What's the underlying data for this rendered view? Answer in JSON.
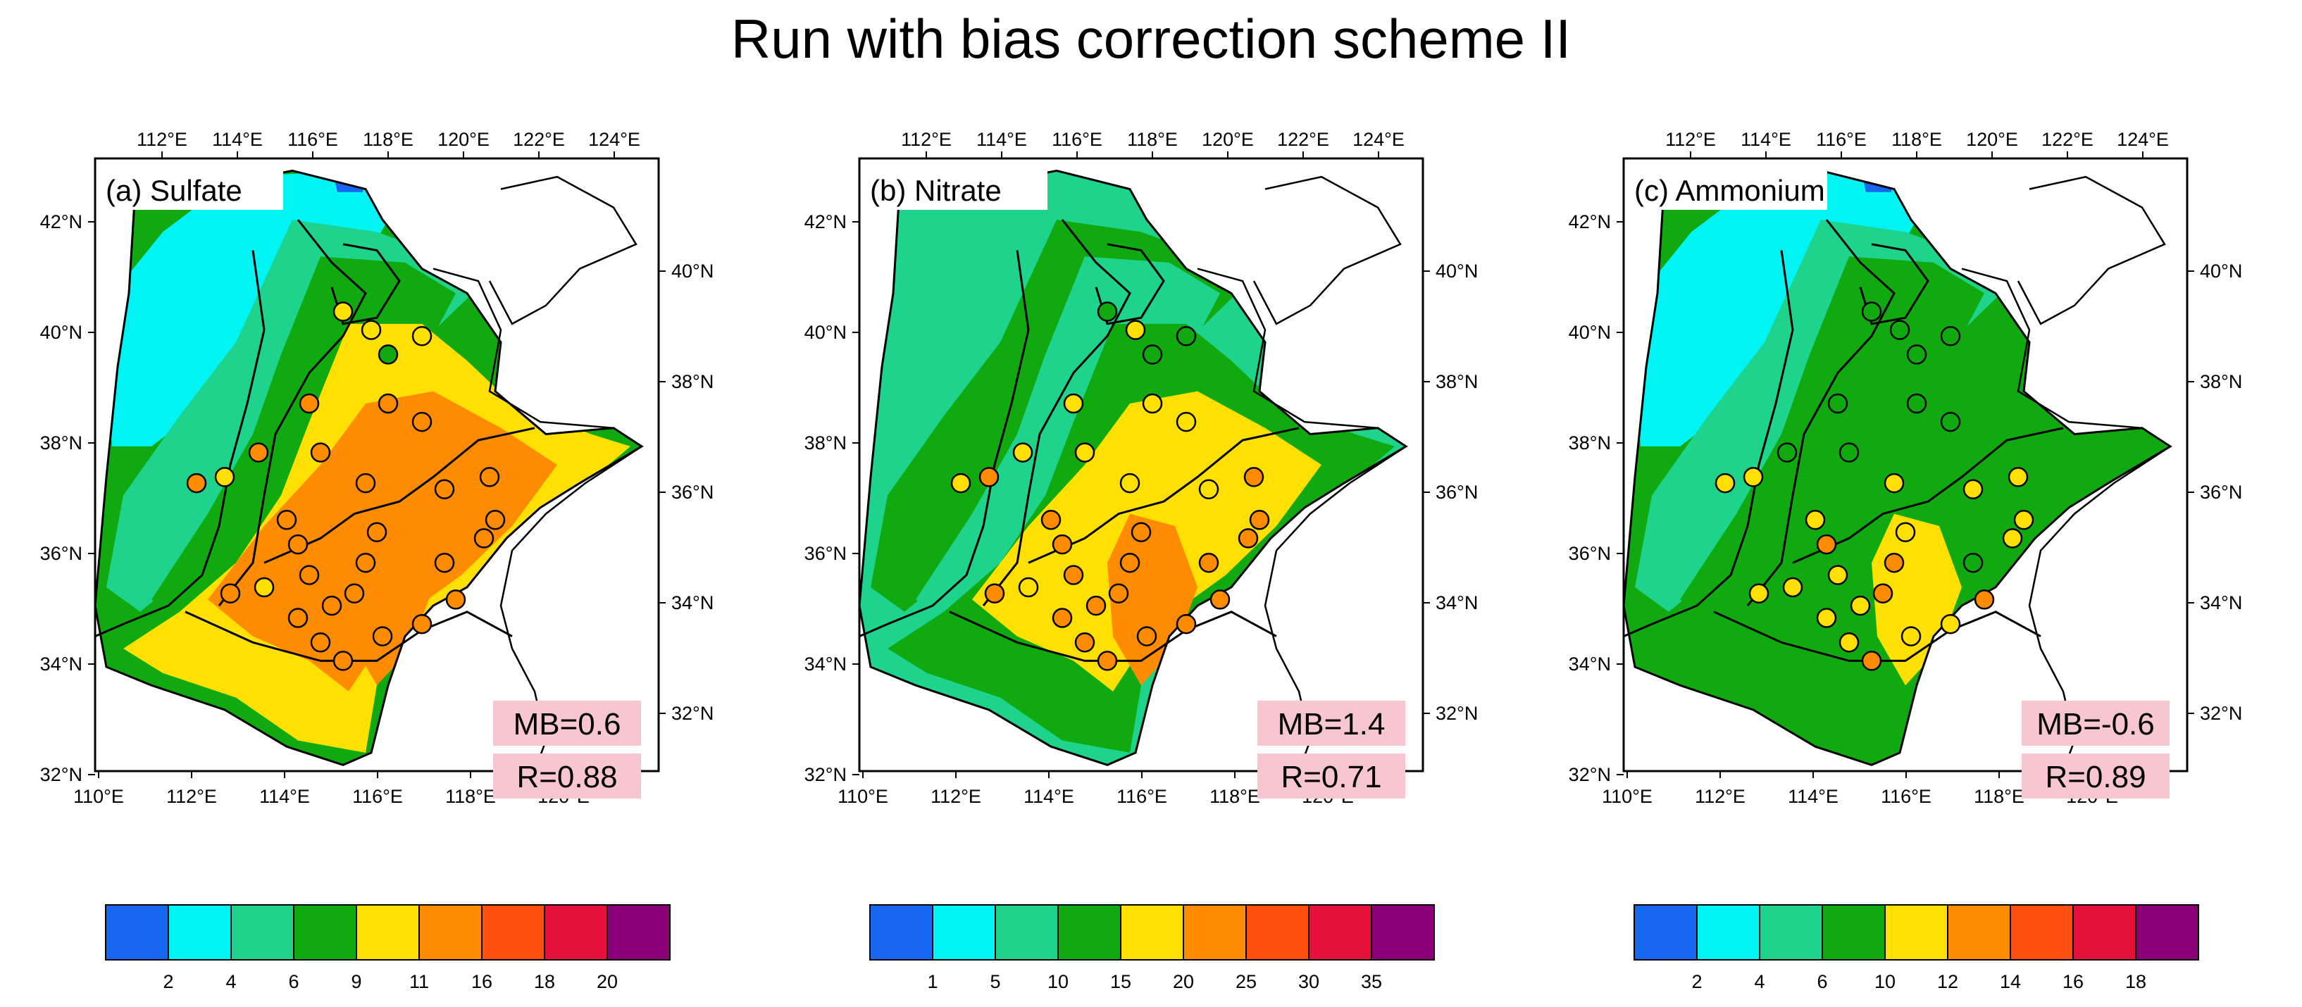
{
  "figure_title": "Run with bias correction scheme II",
  "axes": {
    "top_lon_labels": [
      "112°E",
      "114°E",
      "116°E",
      "118°E",
      "120°E",
      "122°E",
      "124°E"
    ],
    "bottom_lon_labels": [
      "110°E",
      "112°E",
      "114°E",
      "116°E",
      "118°E",
      "120°E"
    ],
    "left_lat_labels": [
      "42°N",
      "40°N",
      "38°N",
      "36°N",
      "34°N",
      "32°N"
    ],
    "right_lat_labels": [
      "40°N",
      "38°N",
      "36°N",
      "34°N",
      "32°N"
    ]
  },
  "panels": [
    {
      "id": "a",
      "title": "(a) Sulfate",
      "mb": "MB=0.6",
      "r": "R=0.88",
      "colorbar": {
        "colors": [
          "#1766f0",
          "#00f4f4",
          "#1ed48c",
          "#10aa10",
          "#ffe000",
          "#ff8c00",
          "#ff4e10",
          "#e6103a",
          "#8b0079"
        ],
        "tick_labels": [
          "2",
          "4",
          "6",
          "9",
          "11",
          "16",
          "18",
          "20"
        ]
      },
      "zones": {
        "z1": "#1766f0",
        "z2": "#00f4f4",
        "z3": "#1ed48c",
        "z4": "#10aa10",
        "z5": "#ffe000",
        "z6": "#ff8c00",
        "z7": "#ff8c00"
      },
      "site_colors": [
        "#ffe000",
        "#ffe000",
        "#10aa10",
        "#ffe000",
        "#ff8c00",
        "#ff8c00",
        "#ff8c00",
        "#ff8c00",
        "#ff8c00",
        "#ff8c00",
        "#ff8c00",
        "#ff8c00",
        "#ff8c00",
        "#ffe000",
        "#ff8c00",
        "#ff8c00",
        "#ff8c00",
        "#ff8c00",
        "#ff8c00",
        "#ff8c00",
        "#ff8c00",
        "#ff8c00",
        "#ff8c00",
        "#ff8c00",
        "#ff8c00",
        "#ff8c00",
        "#ff8c00",
        "#ff8c00",
        "#ff8c00",
        "#ff8c00",
        "#ff8c00",
        "#ffe000"
      ]
    },
    {
      "id": "b",
      "title": "(b) Nitrate",
      "mb": "MB=1.4",
      "r": "R=0.71",
      "colorbar": {
        "colors": [
          "#1766f0",
          "#00f4f4",
          "#1ed48c",
          "#10aa10",
          "#ffe000",
          "#ff8c00",
          "#ff4e10",
          "#e6103a",
          "#8b0079"
        ],
        "tick_labels": [
          "1",
          "5",
          "10",
          "15",
          "20",
          "25",
          "30",
          "35"
        ]
      },
      "zones": {
        "z1": "#1ed48c",
        "z2": "#1ed48c",
        "z3": "#10aa10",
        "z4": "#1ed48c",
        "z5": "#10aa10",
        "z6": "#ffe000",
        "z7": "#ff8c00"
      },
      "site_colors": [
        "#10aa10",
        "#ffe000",
        "#10aa10",
        "#10aa10",
        "#ffe000",
        "#ffe000",
        "#ffe000",
        "#ffe000",
        "#ffe000",
        "#ffe000",
        "#ffe000",
        "#ff8c00",
        "#ffe000",
        "#ff8c00",
        "#ff8c00",
        "#ff8c00",
        "#ff8c00",
        "#ff8c00",
        "#ff8c00",
        "#ff8c00",
        "#ff8c00",
        "#ff8c00",
        "#ff8c00",
        "#ff8c00",
        "#ff8c00",
        "#ff8c00",
        "#ff8c00",
        "#ff8c00",
        "#ff8c00",
        "#ff8c00",
        "#ff8c00",
        "#ffe000"
      ]
    },
    {
      "id": "c",
      "title": "(c) Ammonium",
      "mb": "MB=-0.6",
      "r": "R=0.89",
      "colorbar": {
        "colors": [
          "#1766f0",
          "#00f4f4",
          "#1ed48c",
          "#10aa10",
          "#ffe000",
          "#ff8c00",
          "#ff4e10",
          "#e6103a",
          "#8b0079"
        ],
        "tick_labels": [
          "2",
          "4",
          "6",
          "10",
          "12",
          "14",
          "16",
          "18"
        ]
      },
      "zones": {
        "z1": "#1766f0",
        "z2": "#00f4f4",
        "z3": "#1ed48c",
        "z4": "#10aa10",
        "z5": "#10aa10",
        "z6": "#10aa10",
        "z7": "#ffe000"
      },
      "site_colors": [
        "#10aa10",
        "#10aa10",
        "#10aa10",
        "#10aa10",
        "#10aa10",
        "#10aa10",
        "#10aa10",
        "#10aa10",
        "#10aa10",
        "#ffe000",
        "#ffe000",
        "#ffe000",
        "#ffe000",
        "#ffe000",
        "#ffe000",
        "#ff8c00",
        "#ffe000",
        "#ffe000",
        "#ff8c00",
        "#ff8c00",
        "#ffe000",
        "#ffe000",
        "#ffe000",
        "#ff8c00",
        "#ffe000",
        "#ffe000",
        "#ffe000",
        "#10aa10",
        "#ff8c00",
        "#ffe000",
        "#ffe000",
        "#ffe000"
      ]
    }
  ]
}
